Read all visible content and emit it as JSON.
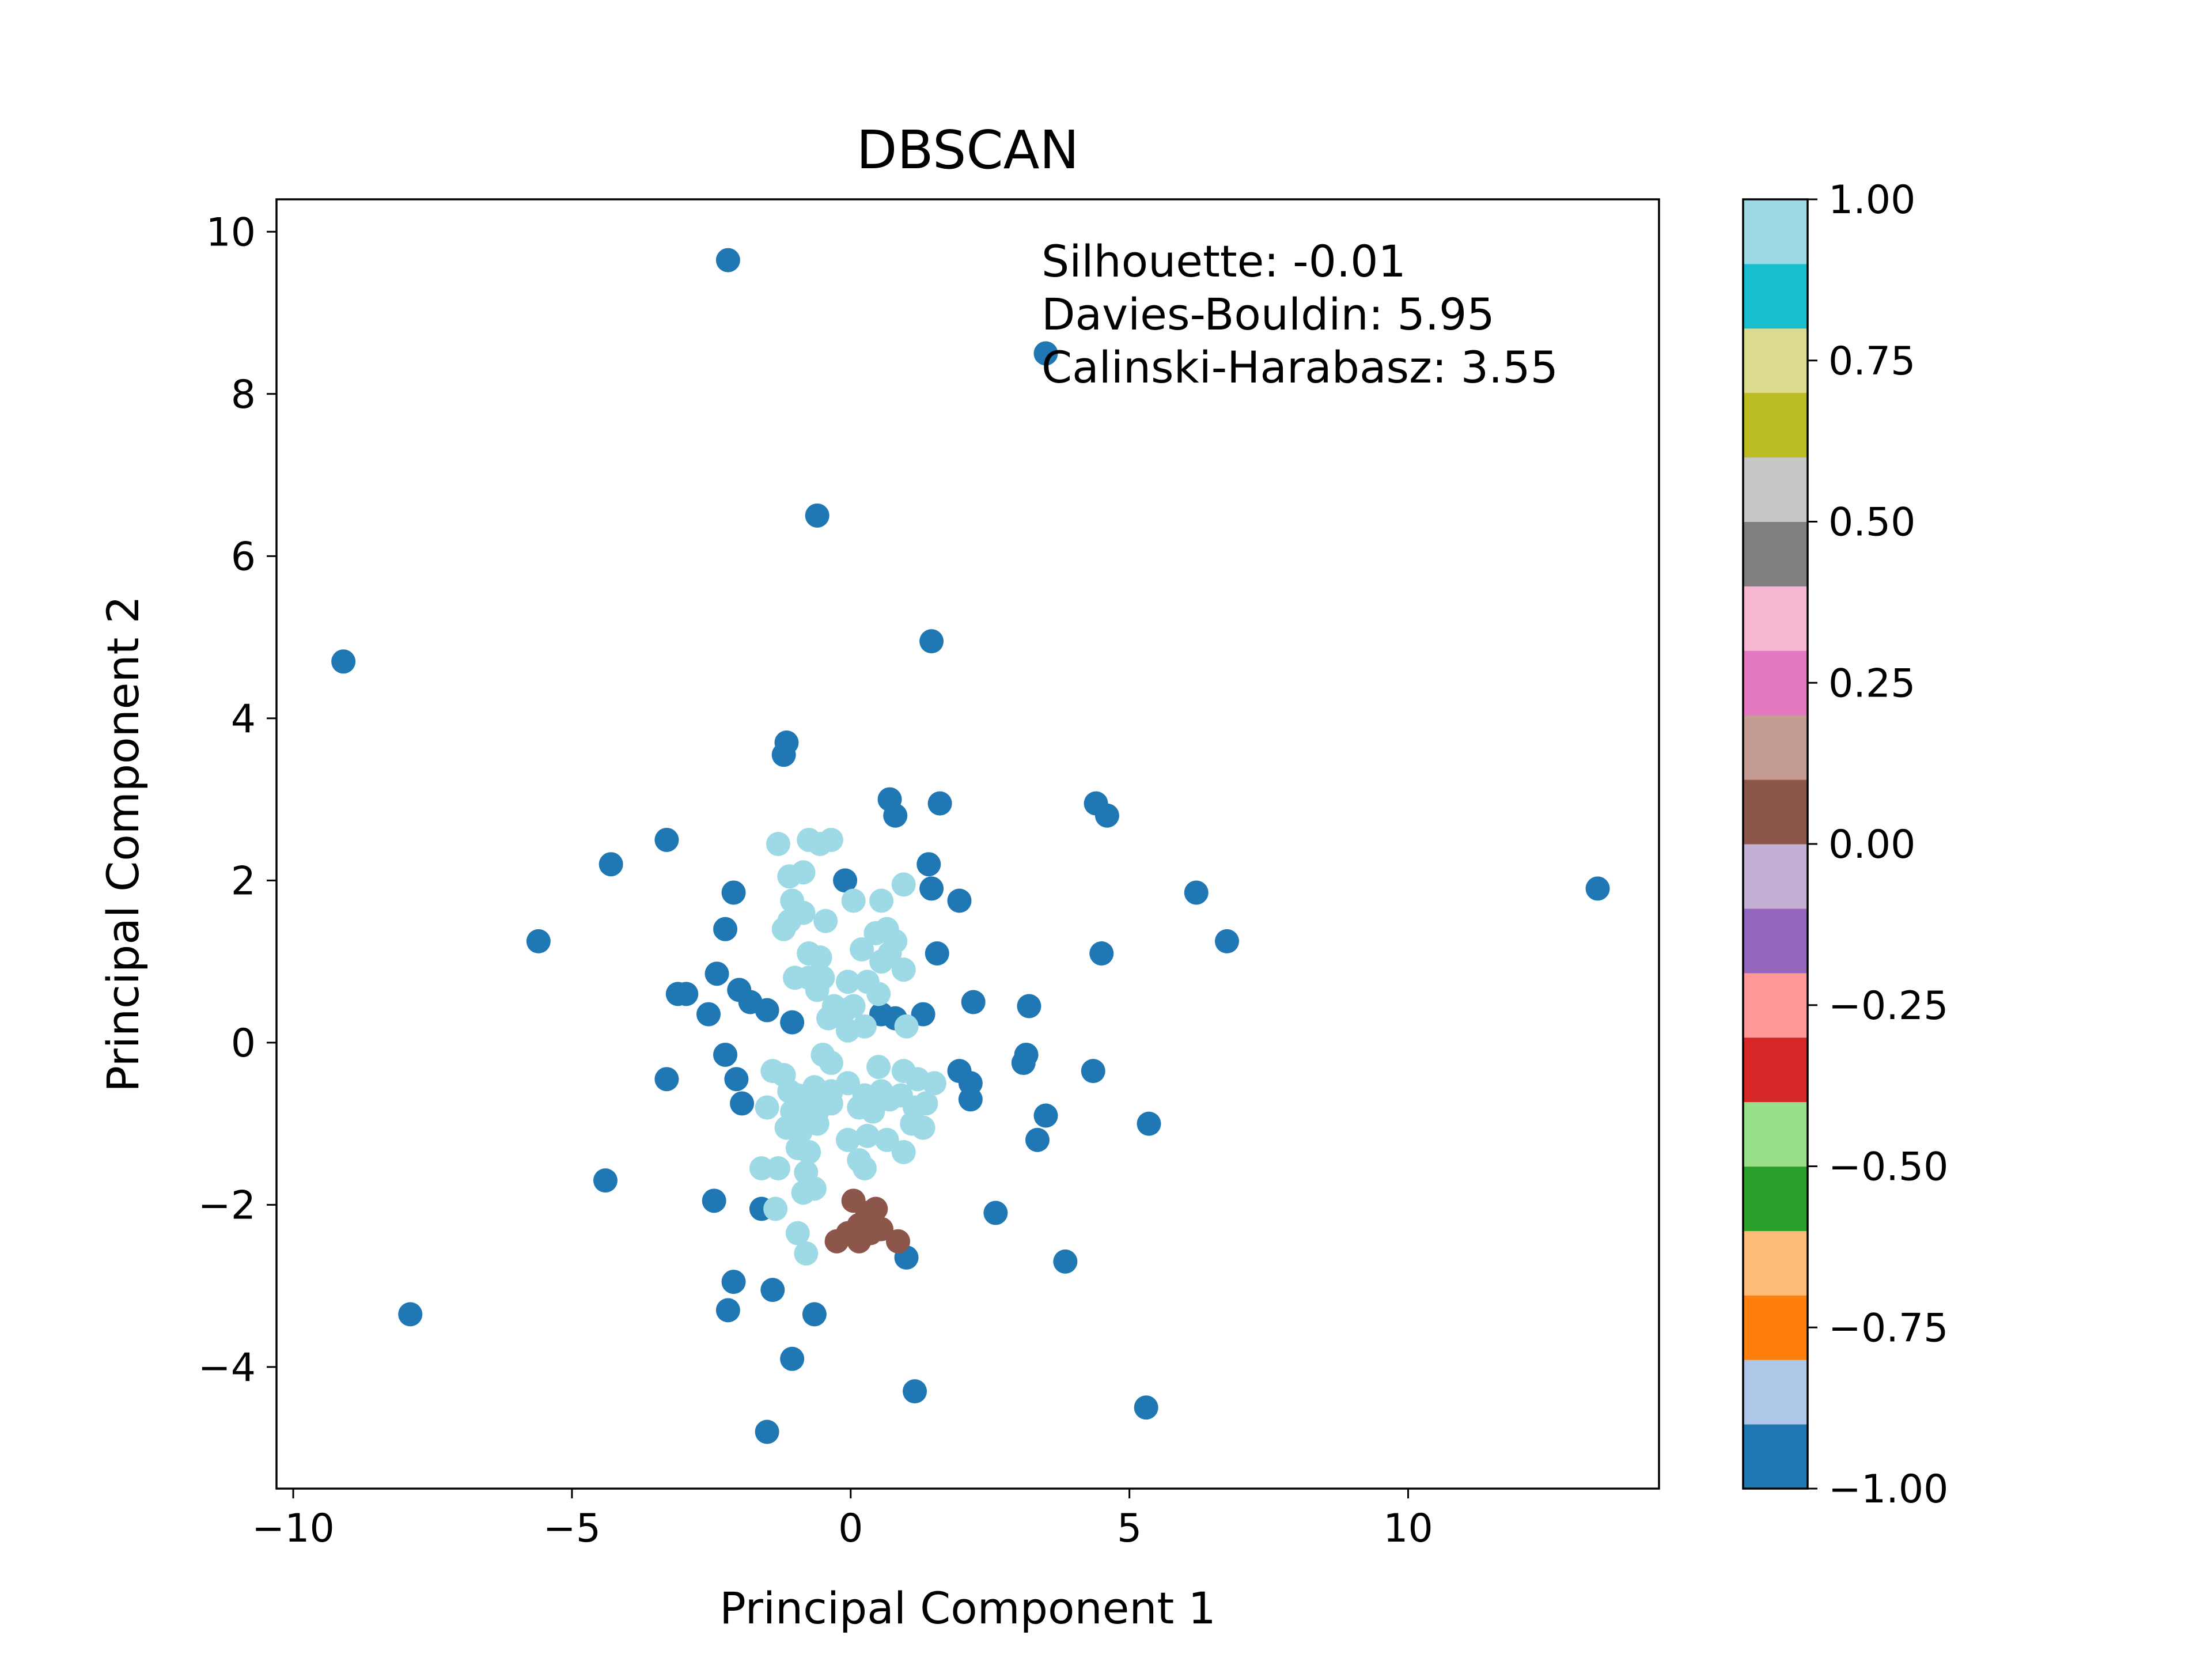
{
  "chart_data": {
    "type": "scatter",
    "title": "DBSCAN",
    "xlabel": "Principal Component 1",
    "ylabel": "Principal Component 2",
    "xlim": [
      -10.3,
      14.5
    ],
    "ylim": [
      -5.5,
      10.4
    ],
    "xticks": [
      -10,
      -5,
      0,
      5,
      10
    ],
    "xtick_labels": [
      "−10",
      "−5",
      "0",
      "5",
      "10"
    ],
    "yticks": [
      -4,
      -2,
      0,
      2,
      4,
      6,
      8,
      10
    ],
    "ytick_labels": [
      "−4",
      "−2",
      "0",
      "2",
      "4",
      "6",
      "8",
      "10"
    ],
    "grid": false,
    "annotation": [
      "Silhouette: -0.01",
      "Davies-Bouldin: 5.95",
      "Calinski-Harabasz: 3.55"
    ],
    "colorbar": {
      "colormap": "tab20",
      "range": [
        -1,
        1
      ],
      "ticks": [
        -1,
        -0.75,
        -0.5,
        -0.25,
        0,
        0.25,
        0.5,
        0.75,
        1
      ],
      "tick_labels": [
        "−1.00",
        "−0.75",
        "−0.50",
        "−0.25",
        "0.00",
        "0.25",
        "0.50",
        "0.75",
        "1.00"
      ],
      "colors": [
        "#1f77b4",
        "#aec7e8",
        "#ff7f0e",
        "#ffbb78",
        "#2ca02c",
        "#98df8a",
        "#d62728",
        "#ff9896",
        "#9467bd",
        "#c5b0d5",
        "#8c564b",
        "#c49c94",
        "#e377c2",
        "#f7b6d2",
        "#7f7f7f",
        "#c7c7c7",
        "#bcbd22",
        "#dbdb8d",
        "#17becf",
        "#9edae5"
      ]
    },
    "series": [
      {
        "label": -1,
        "color": "#1f77b4",
        "points": [
          [
            -2.2,
            9.65
          ],
          [
            3.5,
            8.5
          ],
          [
            -0.6,
            6.5
          ],
          [
            1.45,
            4.95
          ],
          [
            -9.1,
            4.7
          ],
          [
            -1.15,
            3.7
          ],
          [
            -1.2,
            3.55
          ],
          [
            0.7,
            3.0
          ],
          [
            0.8,
            2.8
          ],
          [
            1.6,
            2.95
          ],
          [
            4.4,
            2.95
          ],
          [
            4.6,
            2.8
          ],
          [
            -3.3,
            2.5
          ],
          [
            -4.3,
            2.2
          ],
          [
            -0.1,
            2.0
          ],
          [
            1.4,
            2.2
          ],
          [
            1.45,
            1.9
          ],
          [
            1.95,
            1.75
          ],
          [
            6.2,
            1.85
          ],
          [
            13.4,
            1.9
          ],
          [
            -2.1,
            1.85
          ],
          [
            -2.25,
            1.4
          ],
          [
            -5.6,
            1.25
          ],
          [
            1.55,
            1.1
          ],
          [
            4.5,
            1.1
          ],
          [
            6.75,
            1.25
          ],
          [
            -2.4,
            0.85
          ],
          [
            -3.1,
            0.6
          ],
          [
            -2.95,
            0.6
          ],
          [
            -2.0,
            0.65
          ],
          [
            -1.8,
            0.5
          ],
          [
            -1.5,
            0.4
          ],
          [
            -2.55,
            0.35
          ],
          [
            -1.05,
            0.25
          ],
          [
            0.55,
            0.35
          ],
          [
            0.8,
            0.3
          ],
          [
            1.3,
            0.35
          ],
          [
            2.2,
            0.5
          ],
          [
            3.2,
            0.45
          ],
          [
            -2.25,
            -0.15
          ],
          [
            -2.05,
            -0.45
          ],
          [
            -1.95,
            -0.75
          ],
          [
            -3.3,
            -0.45
          ],
          [
            3.15,
            -0.15
          ],
          [
            3.1,
            -0.25
          ],
          [
            4.35,
            -0.35
          ],
          [
            1.95,
            -0.35
          ],
          [
            2.15,
            -0.5
          ],
          [
            2.15,
            -0.7
          ],
          [
            3.5,
            -0.9
          ],
          [
            3.35,
            -1.2
          ],
          [
            5.35,
            -1.0
          ],
          [
            -4.4,
            -1.7
          ],
          [
            -2.45,
            -1.95
          ],
          [
            -1.6,
            -2.05
          ],
          [
            2.6,
            -2.1
          ],
          [
            1.0,
            -2.65
          ],
          [
            3.85,
            -2.7
          ],
          [
            -2.1,
            -2.95
          ],
          [
            -1.4,
            -3.05
          ],
          [
            -2.2,
            -3.3
          ],
          [
            -0.65,
            -3.35
          ],
          [
            -7.9,
            -3.35
          ],
          [
            -1.05,
            -3.9
          ],
          [
            1.15,
            -4.3
          ],
          [
            5.3,
            -4.5
          ],
          [
            -1.5,
            -4.8
          ]
        ]
      },
      {
        "label": 1,
        "color": "#9edae5",
        "points": [
          [
            -1.3,
            2.45
          ],
          [
            -0.75,
            2.5
          ],
          [
            -0.55,
            2.45
          ],
          [
            -0.35,
            2.5
          ],
          [
            -1.1,
            2.05
          ],
          [
            -0.85,
            2.1
          ],
          [
            -1.05,
            1.75
          ],
          [
            -0.85,
            1.6
          ],
          [
            -1.1,
            1.5
          ],
          [
            -1.2,
            1.4
          ],
          [
            -0.45,
            1.5
          ],
          [
            0.05,
            1.75
          ],
          [
            0.55,
            1.75
          ],
          [
            0.95,
            1.95
          ],
          [
            0.45,
            1.35
          ],
          [
            0.65,
            1.4
          ],
          [
            0.8,
            1.25
          ],
          [
            0.7,
            1.1
          ],
          [
            0.2,
            1.15
          ],
          [
            0.55,
            1.0
          ],
          [
            -0.75,
            1.1
          ],
          [
            -0.55,
            1.05
          ],
          [
            -1.0,
            0.8
          ],
          [
            -0.75,
            0.8
          ],
          [
            -0.5,
            0.8
          ],
          [
            -0.6,
            0.65
          ],
          [
            -0.05,
            0.75
          ],
          [
            0.3,
            0.75
          ],
          [
            0.5,
            0.6
          ],
          [
            0.95,
            0.9
          ],
          [
            -0.3,
            0.45
          ],
          [
            -0.1,
            0.4
          ],
          [
            0.05,
            0.45
          ],
          [
            -0.4,
            0.3
          ],
          [
            -0.05,
            0.15
          ],
          [
            0.25,
            0.2
          ],
          [
            1.0,
            0.2
          ],
          [
            -0.5,
            -0.15
          ],
          [
            -0.35,
            -0.25
          ],
          [
            0.5,
            -0.3
          ],
          [
            0.95,
            -0.35
          ],
          [
            1.2,
            -0.45
          ],
          [
            1.5,
            -0.5
          ],
          [
            -1.4,
            -0.35
          ],
          [
            -1.2,
            -0.4
          ],
          [
            -1.1,
            -0.6
          ],
          [
            -0.95,
            -0.65
          ],
          [
            -0.75,
            -0.65
          ],
          [
            -0.65,
            -0.55
          ],
          [
            -0.35,
            -0.6
          ],
          [
            -0.05,
            -0.5
          ],
          [
            0.25,
            -0.65
          ],
          [
            0.55,
            -0.6
          ],
          [
            0.7,
            -0.7
          ],
          [
            0.9,
            -0.65
          ],
          [
            1.15,
            -0.8
          ],
          [
            1.35,
            -0.75
          ],
          [
            -1.5,
            -0.8
          ],
          [
            -1.05,
            -0.85
          ],
          [
            -0.8,
            -0.9
          ],
          [
            -0.6,
            -0.85
          ],
          [
            -0.35,
            -0.75
          ],
          [
            0.15,
            -0.8
          ],
          [
            0.4,
            -0.85
          ],
          [
            -1.15,
            -1.05
          ],
          [
            -0.9,
            -1.1
          ],
          [
            -0.6,
            -1.0
          ],
          [
            1.1,
            -1.0
          ],
          [
            1.3,
            -1.05
          ],
          [
            -0.95,
            -1.3
          ],
          [
            -0.75,
            -1.35
          ],
          [
            -0.05,
            -1.2
          ],
          [
            0.3,
            -1.15
          ],
          [
            0.65,
            -1.2
          ],
          [
            0.95,
            -1.35
          ],
          [
            -1.6,
            -1.55
          ],
          [
            -1.3,
            -1.55
          ],
          [
            -0.8,
            -1.6
          ],
          [
            0.15,
            -1.45
          ],
          [
            0.25,
            -1.55
          ],
          [
            -0.85,
            -1.85
          ],
          [
            -0.65,
            -1.8
          ],
          [
            -1.35,
            -2.05
          ],
          [
            -0.95,
            -2.35
          ],
          [
            -0.8,
            -2.6
          ]
        ]
      },
      {
        "label": 0,
        "color": "#8c564b",
        "points": [
          [
            0.05,
            -1.95
          ],
          [
            0.3,
            -2.1
          ],
          [
            0.45,
            -2.05
          ],
          [
            0.15,
            -2.25
          ],
          [
            0.35,
            -2.35
          ],
          [
            0.55,
            -2.3
          ],
          [
            -0.05,
            -2.35
          ],
          [
            -0.25,
            -2.45
          ],
          [
            0.15,
            -2.45
          ],
          [
            0.85,
            -2.45
          ]
        ]
      }
    ]
  }
}
